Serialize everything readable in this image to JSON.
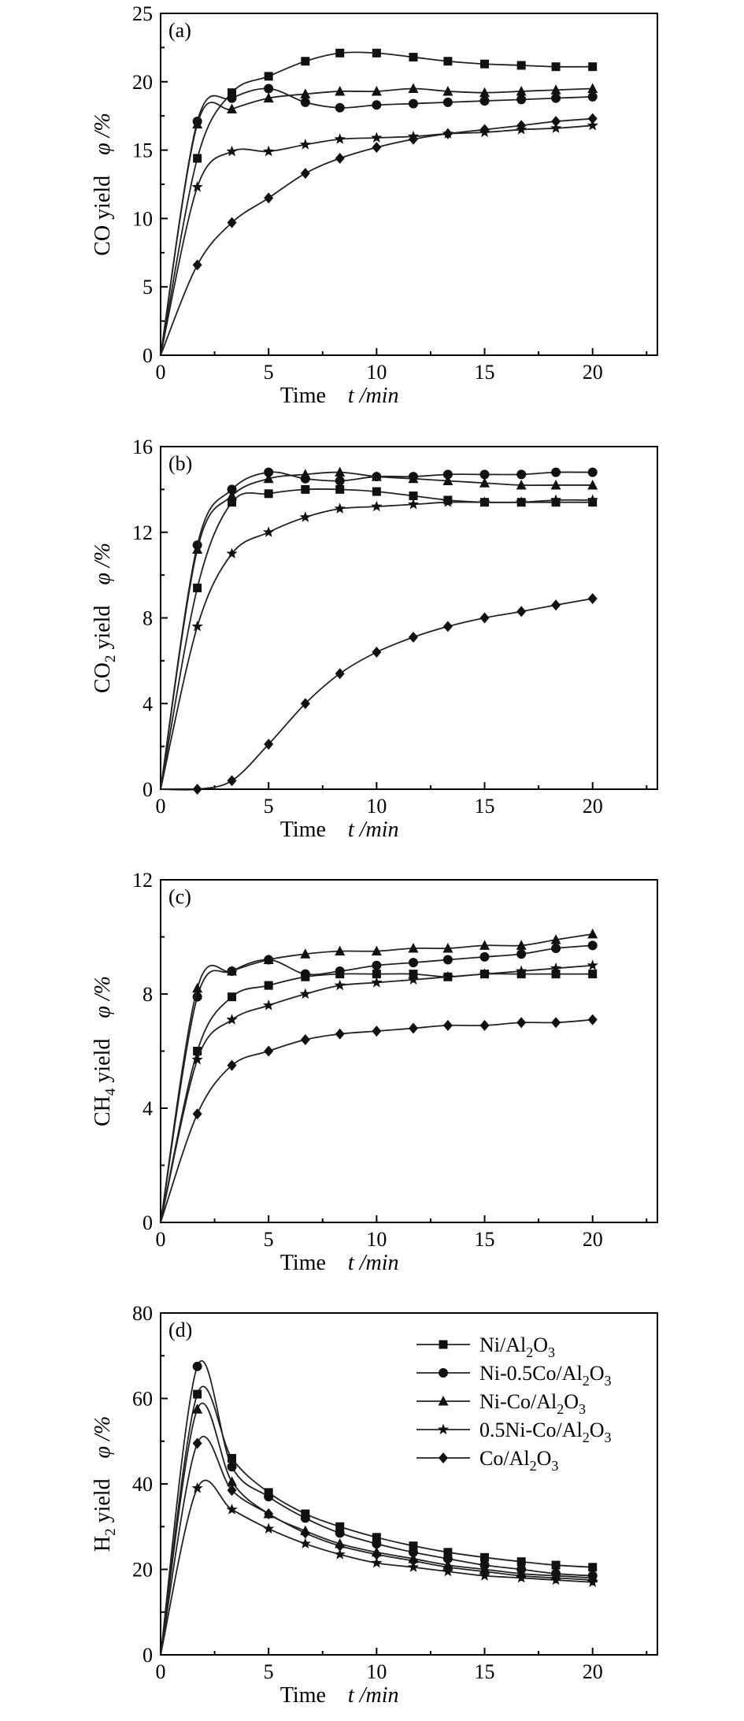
{
  "marker_color": "#111111",
  "chart_data": [
    {
      "type": "line",
      "panel_label": "(a)",
      "ylabel": "CO yield",
      "ylabel_parts": {
        "prefix": "CO",
        "sub": "",
        "suffix": " yield"
      },
      "yunit": "φ /%",
      "xlabel": "Time",
      "xunit": "t /min",
      "xlim": [
        0,
        23
      ],
      "ylim": [
        0,
        25
      ],
      "xticks": [
        0,
        5,
        10,
        15,
        20
      ],
      "yticks": [
        0,
        5,
        10,
        15,
        20,
        25
      ],
      "x": [
        0,
        1.7,
        3.3,
        5,
        6.7,
        8.3,
        10,
        11.7,
        13.3,
        15,
        16.7,
        18.3,
        20
      ],
      "series": [
        {
          "name": "Ni/Al2O3",
          "marker": "square",
          "values": [
            0,
            14.4,
            19.2,
            20.4,
            21.5,
            22.1,
            22.1,
            21.8,
            21.5,
            21.3,
            21.2,
            21.1,
            21.1
          ]
        },
        {
          "name": "Ni-0.5Co/Al2O3",
          "marker": "circle",
          "values": [
            0,
            17.1,
            18.8,
            19.5,
            18.5,
            18.1,
            18.3,
            18.4,
            18.5,
            18.6,
            18.7,
            18.8,
            18.9
          ]
        },
        {
          "name": "Ni-Co/Al2O3",
          "marker": "triangle",
          "values": [
            0,
            16.9,
            18.0,
            18.8,
            19.1,
            19.3,
            19.3,
            19.5,
            19.3,
            19.2,
            19.3,
            19.4,
            19.5
          ]
        },
        {
          "name": "0.5Ni-Co/Al2O3",
          "marker": "star",
          "values": [
            0,
            12.3,
            14.9,
            14.9,
            15.4,
            15.8,
            15.9,
            16.0,
            16.2,
            16.3,
            16.5,
            16.6,
            16.8
          ]
        },
        {
          "name": "Co/Al2O3",
          "marker": "diamond",
          "values": [
            0,
            6.6,
            9.7,
            11.5,
            13.3,
            14.4,
            15.2,
            15.8,
            16.2,
            16.5,
            16.8,
            17.1,
            17.3
          ]
        }
      ]
    },
    {
      "type": "line",
      "panel_label": "(b)",
      "ylabel": "CO2 yield",
      "ylabel_parts": {
        "prefix": "CO",
        "sub": "2",
        "suffix": " yield"
      },
      "yunit": "φ /%",
      "xlabel": "Time",
      "xunit": "t /min",
      "xlim": [
        0,
        23
      ],
      "ylim": [
        0,
        16
      ],
      "xticks": [
        0,
        5,
        10,
        15,
        20
      ],
      "yticks": [
        0,
        4,
        8,
        12,
        16
      ],
      "x": [
        0,
        1.7,
        3.3,
        5,
        6.7,
        8.3,
        10,
        11.7,
        13.3,
        15,
        16.7,
        18.3,
        20
      ],
      "series": [
        {
          "name": "Ni/Al2O3",
          "marker": "square",
          "values": [
            0,
            9.4,
            13.4,
            13.8,
            14.0,
            14.0,
            13.9,
            13.7,
            13.5,
            13.4,
            13.4,
            13.4,
            13.4
          ]
        },
        {
          "name": "Ni-0.5Co/Al2O3",
          "marker": "circle",
          "values": [
            0,
            11.4,
            14.0,
            14.8,
            14.5,
            14.4,
            14.6,
            14.6,
            14.7,
            14.7,
            14.7,
            14.8,
            14.8
          ]
        },
        {
          "name": "Ni-Co/Al2O3",
          "marker": "triangle",
          "values": [
            0,
            11.2,
            13.7,
            14.5,
            14.7,
            14.8,
            14.6,
            14.5,
            14.4,
            14.3,
            14.2,
            14.2,
            14.2
          ]
        },
        {
          "name": "0.5Ni-Co/Al2O3",
          "marker": "star",
          "values": [
            0,
            7.6,
            11.0,
            12.0,
            12.7,
            13.1,
            13.2,
            13.3,
            13.4,
            13.4,
            13.4,
            13.5,
            13.5
          ]
        },
        {
          "name": "Co/Al2O3",
          "marker": "diamond",
          "values": [
            0,
            0,
            0.4,
            2.1,
            4.0,
            5.4,
            6.4,
            7.1,
            7.6,
            8.0,
            8.3,
            8.6,
            8.9
          ]
        }
      ]
    },
    {
      "type": "line",
      "panel_label": "(c)",
      "ylabel": "CH4 yield",
      "ylabel_parts": {
        "prefix": "CH",
        "sub": "4",
        "suffix": " yield"
      },
      "yunit": "φ /%",
      "xlabel": "Time",
      "xunit": "t /min",
      "xlim": [
        0,
        23
      ],
      "ylim": [
        0,
        12
      ],
      "xticks": [
        0,
        5,
        10,
        15,
        20
      ],
      "yticks": [
        0,
        4,
        8,
        12
      ],
      "x": [
        0,
        1.7,
        3.3,
        5,
        6.7,
        8.3,
        10,
        11.7,
        13.3,
        15,
        16.7,
        18.3,
        20
      ],
      "series": [
        {
          "name": "Ni/Al2O3",
          "marker": "square",
          "values": [
            0,
            6.0,
            7.9,
            8.3,
            8.6,
            8.7,
            8.7,
            8.7,
            8.6,
            8.7,
            8.7,
            8.7,
            8.7
          ]
        },
        {
          "name": "Ni-0.5Co/Al2O3",
          "marker": "circle",
          "values": [
            0,
            7.9,
            8.8,
            9.2,
            8.7,
            8.8,
            9.0,
            9.1,
            9.2,
            9.3,
            9.4,
            9.6,
            9.7
          ]
        },
        {
          "name": "Ni-Co/Al2O3",
          "marker": "triangle",
          "values": [
            0,
            8.2,
            8.8,
            9.2,
            9.4,
            9.5,
            9.5,
            9.6,
            9.6,
            9.7,
            9.7,
            9.9,
            10.1
          ]
        },
        {
          "name": "0.5Ni-Co/Al2O3",
          "marker": "star",
          "values": [
            0,
            5.7,
            7.1,
            7.6,
            8.0,
            8.3,
            8.4,
            8.5,
            8.6,
            8.7,
            8.8,
            8.9,
            9.0
          ]
        },
        {
          "name": "Co/Al2O3",
          "marker": "diamond",
          "values": [
            0,
            3.8,
            5.5,
            6.0,
            6.4,
            6.6,
            6.7,
            6.8,
            6.9,
            6.9,
            7.0,
            7.0,
            7.1
          ]
        }
      ]
    },
    {
      "type": "line",
      "panel_label": "(d)",
      "ylabel": "H2 yield",
      "ylabel_parts": {
        "prefix": "H",
        "sub": "2",
        "suffix": " yield"
      },
      "yunit": "φ /%",
      "xlabel": "Time",
      "xunit": "t /min",
      "xlim": [
        0,
        23
      ],
      "ylim": [
        0,
        80
      ],
      "xticks": [
        0,
        5,
        10,
        15,
        20
      ],
      "yticks": [
        0,
        20,
        40,
        60,
        80
      ],
      "legend_position": "top-right",
      "x": [
        0,
        1.7,
        3.3,
        5,
        6.7,
        8.3,
        10,
        11.7,
        13.3,
        15,
        16.7,
        18.3,
        20
      ],
      "series": [
        {
          "name": "Ni/Al2O3",
          "marker": "square",
          "values": [
            0,
            61,
            46,
            38,
            33,
            30,
            27.5,
            25.5,
            24,
            22.8,
            21.8,
            21,
            20.5
          ]
        },
        {
          "name": "Ni-0.5Co/Al2O3",
          "marker": "circle",
          "values": [
            0,
            67.5,
            44,
            37,
            32,
            28.5,
            26,
            24,
            22.5,
            21,
            20,
            19,
            18.5
          ]
        },
        {
          "name": "Ni-Co/Al2O3",
          "marker": "triangle",
          "values": [
            0,
            57.5,
            40.5,
            33,
            29,
            26,
            24,
            22.5,
            21,
            20,
            19,
            18.5,
            18
          ]
        },
        {
          "name": "0.5Ni-Co/Al2O3",
          "marker": "star",
          "values": [
            0,
            39,
            34,
            29.5,
            26,
            23.5,
            21.5,
            20.5,
            19.5,
            18.5,
            18,
            17.5,
            17
          ]
        },
        {
          "name": "Co/Al2O3",
          "marker": "diamond",
          "values": [
            0,
            49.5,
            38.5,
            33,
            28.5,
            25.5,
            23.5,
            22,
            20.5,
            19.5,
            18.5,
            18,
            17.5
          ]
        }
      ]
    }
  ],
  "legend": [
    {
      "prefix": "Ni/Al",
      "sub1": "2",
      "mid": "O",
      "sub2": "3",
      "marker": "square"
    },
    {
      "prefix": "Ni-0.5Co/Al",
      "sub1": "2",
      "mid": "O",
      "sub2": "3",
      "marker": "circle"
    },
    {
      "prefix": "Ni-Co/Al",
      "sub1": "2",
      "mid": "O",
      "sub2": "3",
      "marker": "triangle"
    },
    {
      "prefix": "0.5Ni-Co/Al",
      "sub1": "2",
      "mid": "O",
      "sub2": "3",
      "marker": "star"
    },
    {
      "prefix": "Co/Al",
      "sub1": "2",
      "mid": "O",
      "sub2": "3",
      "marker": "diamond"
    }
  ]
}
